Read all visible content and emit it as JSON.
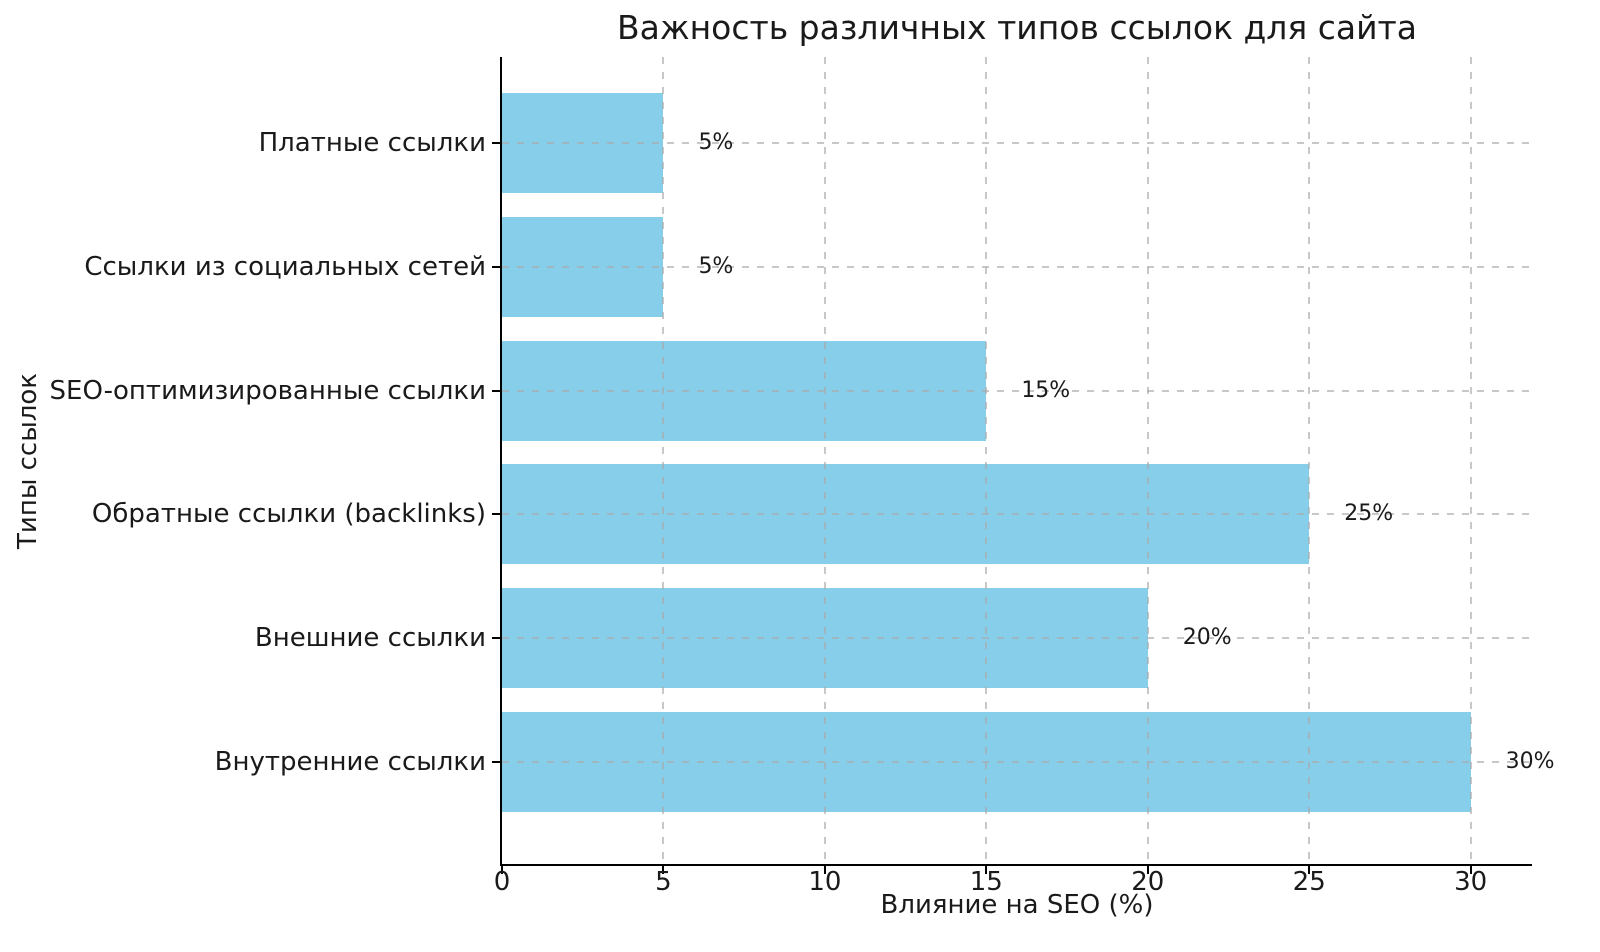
{
  "chart_data": {
    "type": "bar",
    "orientation": "horizontal",
    "title": "Важность различных типов ссылок для сайта",
    "xlabel": "Влияние на SEO (%)",
    "ylabel": "Типы ссылок",
    "categories": [
      "Платные ссылки",
      "Ссылки из социальных сетей",
      "SEO-оптимизированные ссылки",
      "Обратные ссылки (backlinks)",
      "Внешние ссылки",
      "Внутренние ссылки"
    ],
    "values": [
      5,
      5,
      15,
      25,
      20,
      30
    ],
    "value_labels": [
      "5%",
      "5%",
      "15%",
      "25%",
      "20%",
      "30%"
    ],
    "x_ticks": [
      0,
      5,
      10,
      15,
      20,
      25,
      30
    ],
    "xlim": [
      0,
      31.9
    ],
    "grid": true,
    "grid_style": "dashed",
    "legend": "none",
    "bar_color": "#87CEEB",
    "grid_color": "#c4c4c4",
    "spine_color": "#000000",
    "text_color": "#1a1a1a",
    "background": "#ffffff"
  }
}
